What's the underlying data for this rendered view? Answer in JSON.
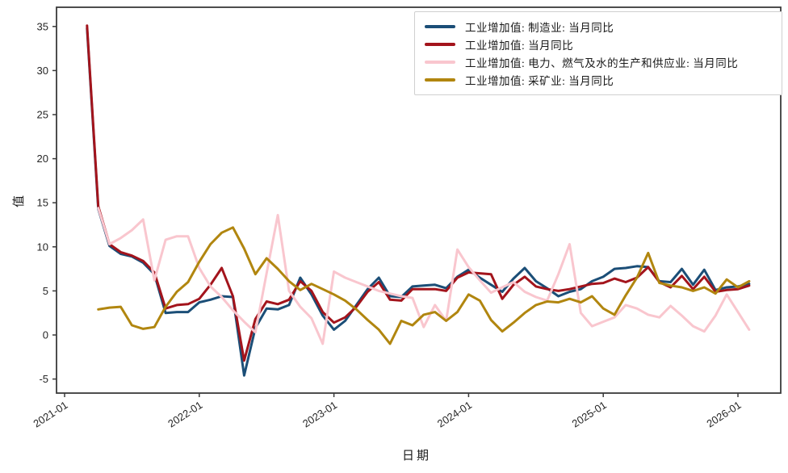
{
  "figure": {
    "background_color": "#ffffff",
    "frame_color": "#3a3a3a",
    "tick_color": "#262626"
  },
  "chart_data": {
    "type": "line",
    "title": "",
    "xlabel": "日期",
    "ylabel": "值",
    "grid": false,
    "legend_position": "upper right",
    "ylim": [
      -6.5,
      37.2
    ],
    "y_ticks": [
      -5,
      0,
      5,
      10,
      15,
      20,
      25,
      30,
      35
    ],
    "x_ticks": [
      "2021-01",
      "2022-01",
      "2023-01",
      "2024-01",
      "2025-01",
      "2026-01"
    ],
    "x": [
      "2021-03",
      "2021-04",
      "2021-05",
      "2021-06",
      "2021-07",
      "2021-08",
      "2021-09",
      "2021-10",
      "2021-11",
      "2021-12",
      "2022-01",
      "2022-02",
      "2022-03",
      "2022-04",
      "2022-05",
      "2022-06",
      "2022-07",
      "2022-08",
      "2022-09",
      "2022-10",
      "2022-11",
      "2022-12",
      "2023-01",
      "2023-02",
      "2023-03",
      "2023-04",
      "2023-05",
      "2023-06",
      "2023-07",
      "2023-08",
      "2023-09",
      "2023-10",
      "2023-11",
      "2023-12",
      "2024-01",
      "2024-02",
      "2024-03",
      "2024-04",
      "2024-05",
      "2024-06",
      "2024-07",
      "2024-08",
      "2024-09",
      "2024-10",
      "2024-11",
      "2024-12",
      "2025-01",
      "2025-02",
      "2025-03",
      "2025-04",
      "2025-05",
      "2025-06",
      "2025-07",
      "2025-08",
      "2025-09",
      "2025-10",
      "2025-11",
      "2025-12",
      "2026-01",
      "2026-02"
    ],
    "series": [
      {
        "name": "工业增加值: 制造业: 当月同比",
        "color": "#1b4e77",
        "values": [
          34.8,
          14.3,
          10.1,
          9.2,
          8.9,
          8.2,
          6.9,
          2.5,
          2.6,
          2.6,
          3.7,
          4.0,
          4.4,
          4.3,
          -4.6,
          0.8,
          3.0,
          2.9,
          3.4,
          6.5,
          4.6,
          2.2,
          0.6,
          1.6,
          3.4,
          5.2,
          6.5,
          4.4,
          4.3,
          5.5,
          5.6,
          5.7,
          5.3,
          6.6,
          7.4,
          6.5,
          5.7,
          4.9,
          6.4,
          7.6,
          6.1,
          5.3,
          4.4,
          4.9,
          5.2,
          6.1,
          6.6,
          7.5,
          7.6,
          7.8,
          7.7,
          6.1,
          6.0,
          7.5,
          5.7,
          7.4,
          5.1,
          5.4,
          5.5,
          5.8
        ]
      },
      {
        "name": "工业增加值: 当月同比",
        "color": "#a3141c",
        "values": [
          35.1,
          14.6,
          10.3,
          9.4,
          9.0,
          8.4,
          7.1,
          3.0,
          3.4,
          3.5,
          4.1,
          5.7,
          7.6,
          4.4,
          -2.9,
          1.8,
          3.8,
          3.5,
          4.0,
          6.1,
          5.0,
          2.6,
          1.4,
          2.0,
          3.2,
          4.9,
          6.0,
          4.0,
          3.9,
          5.2,
          5.2,
          5.2,
          5.0,
          6.5,
          7.1,
          7.0,
          6.9,
          4.1,
          5.7,
          6.6,
          5.5,
          5.2,
          5.0,
          5.2,
          5.5,
          5.8,
          5.9,
          6.4,
          6.0,
          6.5,
          7.7,
          6.0,
          5.4,
          6.7,
          5.2,
          6.6,
          4.9,
          5.1,
          5.2,
          5.6
        ]
      },
      {
        "name": "工业增加值: 电力、燃气及水的生产和供应业: 当月同比",
        "color": "#f9c6ce",
        "values": [
          null,
          14.4,
          10.3,
          11.0,
          11.9,
          13.1,
          6.2,
          10.8,
          11.2,
          11.2,
          7.6,
          5.5,
          4.3,
          2.8,
          1.5,
          0.3,
          7.0,
          13.6,
          5.0,
          3.2,
          1.9,
          -1.0,
          7.2,
          6.5,
          6.0,
          5.5,
          5.0,
          4.7,
          4.4,
          4.2,
          0.9,
          3.4,
          1.6,
          9.7,
          7.7,
          6.2,
          4.8,
          5.4,
          6.0,
          4.9,
          4.3,
          3.9,
          6.9,
          10.3,
          2.5,
          1.0,
          1.5,
          2.0,
          3.4,
          3.0,
          2.3,
          2.0,
          3.3,
          2.2,
          1.0,
          0.4,
          2.2,
          4.6,
          2.6,
          0.6
        ]
      },
      {
        "name": "工业增加值: 采矿业: 当月同比",
        "color": "#b1860f",
        "values": [
          null,
          2.9,
          3.1,
          3.2,
          1.1,
          0.7,
          0.9,
          3.2,
          4.9,
          6.0,
          8.3,
          10.3,
          11.6,
          12.2,
          9.8,
          6.9,
          8.7,
          7.5,
          6.1,
          5.1,
          5.8,
          5.2,
          4.6,
          3.9,
          2.9,
          1.7,
          0.6,
          -1.0,
          1.6,
          1.1,
          2.3,
          2.6,
          1.6,
          2.6,
          4.6,
          3.9,
          1.7,
          0.4,
          1.4,
          2.5,
          3.4,
          3.8,
          3.7,
          4.1,
          3.7,
          4.4,
          3.0,
          2.3,
          4.5,
          6.5,
          9.3,
          5.9,
          5.6,
          5.4,
          5.0,
          5.4,
          4.7,
          6.3,
          5.4,
          6.1
        ]
      }
    ]
  }
}
